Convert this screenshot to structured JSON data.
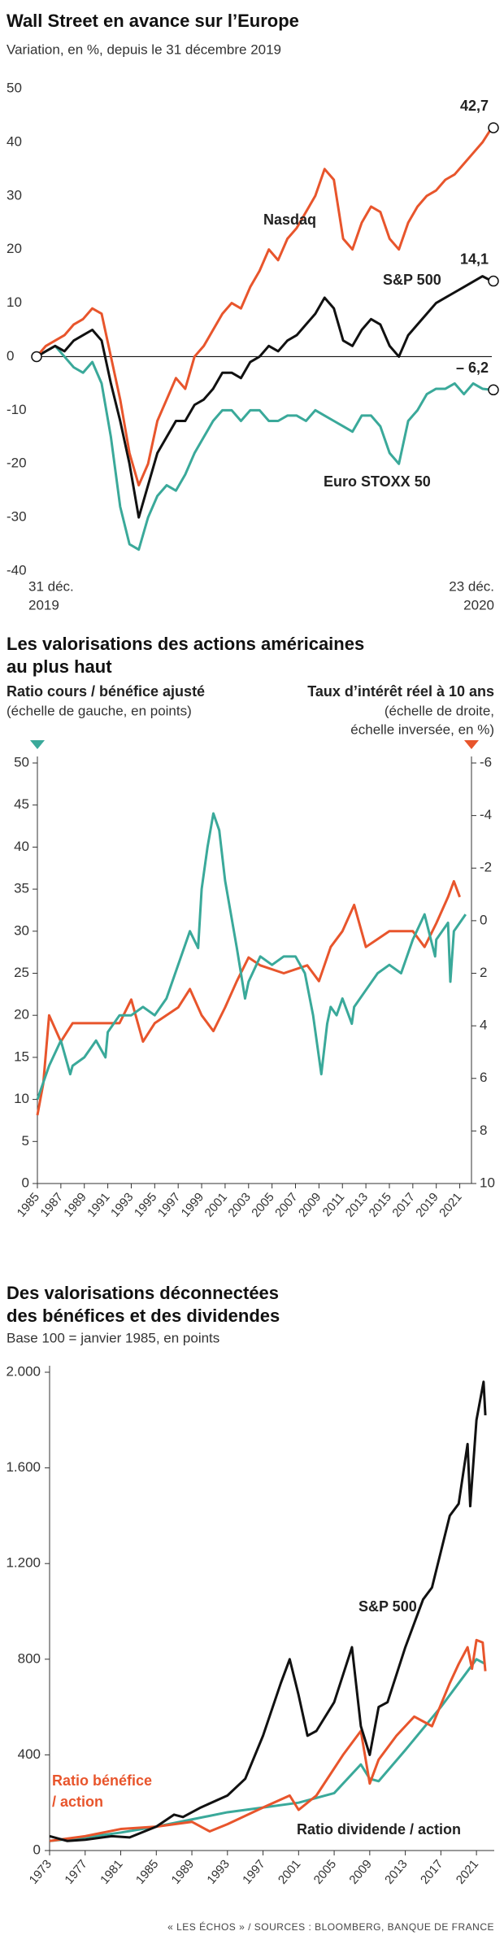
{
  "chart_data": [
    {
      "type": "line",
      "title": [
        "Wall Street en avance sur l’Europe"
      ],
      "subtitle": "Variation, en %, depuis le 31 décembre 2019",
      "x_labels": [
        {
          "day": "31 déc.",
          "year": "2019"
        },
        {
          "day": "23 déc.",
          "year": "2020"
        }
      ],
      "ylim": [
        -40,
        50
      ],
      "yticks": [
        -40,
        -30,
        -20,
        -10,
        0,
        10,
        20,
        30,
        40,
        50
      ],
      "zero_line": true,
      "series": [
        {
          "name": "Nasdaq",
          "color": "#e8552c",
          "last_value_label": "42,7",
          "values": [
            0,
            2,
            3,
            4,
            6,
            7,
            9,
            8,
            0,
            -8,
            -18,
            -24,
            -20,
            -12,
            -8,
            -4,
            -6,
            0,
            2,
            5,
            8,
            10,
            9,
            13,
            16,
            20,
            18,
            22,
            24,
            27,
            30,
            35,
            33,
            22,
            20,
            25,
            28,
            27,
            22,
            20,
            25,
            28,
            30,
            31,
            33,
            34,
            36,
            38,
            40,
            42.7
          ]
        },
        {
          "name": "S&P 500",
          "color": "#111111",
          "last_value_label": "14,1",
          "values": [
            0,
            1,
            2,
            1,
            3,
            4,
            5,
            3,
            -5,
            -12,
            -20,
            -30,
            -24,
            -18,
            -15,
            -12,
            -12,
            -9,
            -8,
            -6,
            -3,
            -3,
            -4,
            -1,
            0,
            2,
            1,
            3,
            4,
            6,
            8,
            11,
            9,
            3,
            2,
            5,
            7,
            6,
            2,
            0,
            4,
            6,
            8,
            10,
            11,
            12,
            13,
            14,
            15,
            14.1
          ]
        },
        {
          "name": "Euro STOXX 50",
          "color": "#3aa99a",
          "last_value_label": "– 6,2",
          "values": [
            0,
            1,
            2,
            0,
            -2,
            -3,
            -1,
            -5,
            -15,
            -28,
            -35,
            -36,
            -30,
            -26,
            -24,
            -25,
            -22,
            -18,
            -15,
            -12,
            -10,
            -10,
            -12,
            -10,
            -10,
            -12,
            -12,
            -11,
            -11,
            -12,
            -10,
            -11,
            -12,
            -13,
            -14,
            -11,
            -11,
            -13,
            -18,
            -20,
            -12,
            -10,
            -7,
            -6,
            -6,
            -5,
            -7,
            -5,
            -6,
            -6.2
          ]
        }
      ]
    },
    {
      "type": "line",
      "title": [
        "Les valorisations des actions américaines",
        "au plus haut"
      ],
      "xlim": [
        1985,
        2022
      ],
      "xticks": [
        1985,
        1987,
        1989,
        1991,
        1993,
        1995,
        1997,
        1999,
        2001,
        2003,
        2005,
        2007,
        2009,
        2011,
        2013,
        2015,
        2017,
        2019,
        2021
      ],
      "ylim": [
        0,
        50
      ],
      "yticks": [
        0,
        5,
        10,
        15,
        20,
        25,
        30,
        35,
        40,
        45,
        50
      ],
      "y2lim": [
        -6,
        10
      ],
      "y2_reversed": true,
      "y2ticks": [
        -6,
        -4,
        -2,
        0,
        2,
        4,
        6,
        8,
        10
      ],
      "axis_lines": true,
      "series": [
        {
          "name": "Ratio cours / bénéfice ajusté",
          "scale_note": [
            "(échelle de gauche, en points)"
          ],
          "color": "#3aa99a",
          "x": [
            1985,
            1985.5,
            1986,
            1987,
            1987.8,
            1988,
            1989,
            1990,
            1990.8,
            1991,
            1992,
            1993,
            1994,
            1995,
            1996,
            1997,
            1998,
            1998.7,
            1999,
            1999.5,
            2000,
            2000.5,
            2001,
            2001.5,
            2002,
            2002.7,
            2003,
            2004,
            2005,
            2006,
            2007,
            2007.8,
            2008.5,
            2009.2,
            2009.7,
            2010,
            2010.5,
            2011,
            2011.8,
            2012,
            2013,
            2014,
            2015,
            2016,
            2017,
            2018,
            2018.9,
            2019,
            2019.5,
            2020,
            2020.2,
            2020.5,
            2021,
            2021.5
          ],
          "values": [
            10,
            12,
            14,
            17,
            13,
            14,
            15,
            17,
            15,
            18,
            20,
            20,
            21,
            20,
            22,
            26,
            30,
            28,
            35,
            40,
            44,
            42,
            36,
            32,
            28,
            22,
            24,
            27,
            26,
            27,
            27,
            25,
            20,
            13,
            19,
            21,
            20,
            22,
            19,
            21,
            23,
            25,
            26,
            25,
            29,
            32,
            27,
            29,
            30,
            31,
            24,
            30,
            31,
            32
          ]
        },
        {
          "name": "Taux d’intérêt réel à 10 ans",
          "scale_note": [
            "(échelle de droite,",
            "échelle inversée, en %)"
          ],
          "color": "#e8552c",
          "axis": "y2",
          "x": [
            1985,
            1985.5,
            1986,
            1987,
            1988,
            1990,
            1992,
            1993,
            1994,
            1995,
            1997,
            1998,
            1999,
            2000,
            2001,
            2002,
            2003,
            2004,
            2006,
            2008,
            2009,
            2010,
            2011,
            2012,
            2013,
            2014,
            2015,
            2016,
            2017,
            2018,
            2019,
            2020,
            2020.5,
            2021
          ],
          "values": [
            7.4,
            6.2,
            3.6,
            4.6,
            3.9,
            3.9,
            3.9,
            3.0,
            4.6,
            3.9,
            3.3,
            2.6,
            3.6,
            4.2,
            3.3,
            2.3,
            1.4,
            1.7,
            2.0,
            1.7,
            2.3,
            1.0,
            0.4,
            -0.6,
            1.0,
            0.7,
            0.4,
            0.4,
            0.4,
            1.0,
            0.1,
            -0.9,
            -1.5,
            -0.9
          ]
        }
      ]
    },
    {
      "type": "line",
      "title": [
        "Des valorisations déconnectées",
        "des bénéfices et des dividendes"
      ],
      "subtitle": "Base 100 = janvier 1985, en points",
      "xlim": [
        1973,
        2023
      ],
      "xticks": [
        1973,
        1977,
        1981,
        1985,
        1989,
        1993,
        1997,
        2001,
        2005,
        2009,
        2013,
        2017,
        2021
      ],
      "ylim": [
        0,
        2000
      ],
      "yticks": [
        0,
        400,
        800,
        {
          "value": 1200,
          "label": "1.200"
        },
        {
          "value": 1600,
          "label": "1.600"
        },
        {
          "value": 2000,
          "label": "2.000"
        }
      ],
      "axis_lines": true,
      "series": [
        {
          "name": "S&P 500",
          "color": "#111111",
          "x": [
            1973,
            1974,
            1975,
            1977,
            1980,
            1982,
            1985,
            1987,
            1988,
            1990,
            1993,
            1995,
            1997,
            1999,
            2000,
            2001,
            2002,
            2003,
            2005,
            2007,
            2008,
            2009,
            2010,
            2011,
            2013,
            2015,
            2016,
            2018,
            2019,
            2020,
            2020.3,
            2021,
            2021.8,
            2022
          ],
          "values": [
            60,
            50,
            40,
            45,
            60,
            55,
            100,
            150,
            140,
            180,
            230,
            300,
            480,
            700,
            800,
            650,
            480,
            500,
            620,
            850,
            520,
            400,
            600,
            620,
            850,
            1050,
            1100,
            1400,
            1450,
            1700,
            1440,
            1800,
            1960,
            1820
          ]
        },
        {
          "name": "Ratio bénéfice / action",
          "color": "#e8552c",
          "x": [
            1973,
            1977,
            1981,
            1985,
            1989,
            1991,
            1993,
            1997,
            2000,
            2001,
            2003,
            2006,
            2008,
            2009,
            2010,
            2012,
            2014,
            2016,
            2018,
            2019,
            2020,
            2020.5,
            2021,
            2021.7,
            2022
          ],
          "values": [
            40,
            60,
            90,
            100,
            120,
            80,
            110,
            180,
            230,
            170,
            230,
            400,
            500,
            280,
            380,
            480,
            560,
            520,
            700,
            780,
            850,
            760,
            880,
            870,
            750
          ]
        },
        {
          "name": "Ratio dividende / action",
          "color": "#3aa99a",
          "x": [
            1973,
            1977,
            1981,
            1985,
            1989,
            1993,
            1997,
            2001,
            2005,
            2008,
            2009,
            2010,
            2013,
            2017,
            2019,
            2021,
            2022
          ],
          "values": [
            40,
            55,
            75,
            100,
            130,
            160,
            180,
            200,
            240,
            360,
            300,
            290,
            420,
            600,
            700,
            800,
            780
          ]
        }
      ]
    }
  ],
  "footer": "« LES ÉCHOS » / SOURCES : BLOOMBERG, BANQUE DE FRANCE"
}
